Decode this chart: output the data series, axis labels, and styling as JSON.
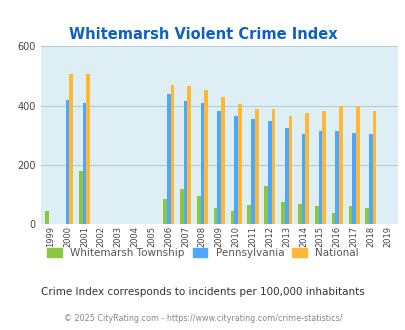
{
  "title": "Whitemarsh Violent Crime Index",
  "years": [
    1999,
    2000,
    2001,
    2002,
    2003,
    2004,
    2005,
    2006,
    2007,
    2008,
    2009,
    2010,
    2011,
    2012,
    2013,
    2014,
    2015,
    2016,
    2017,
    2018,
    2019
  ],
  "whitemarsh": [
    45,
    0,
    180,
    0,
    0,
    0,
    0,
    85,
    120,
    95,
    55,
    45,
    65,
    130,
    75,
    70,
    62,
    40,
    62,
    55,
    0
  ],
  "pennsylvania": [
    0,
    420,
    410,
    0,
    0,
    0,
    0,
    440,
    415,
    410,
    383,
    365,
    355,
    348,
    325,
    305,
    315,
    313,
    307,
    303,
    0
  ],
  "national": [
    0,
    505,
    505,
    0,
    0,
    0,
    0,
    470,
    465,
    452,
    430,
    405,
    390,
    390,
    365,
    375,
    383,
    400,
    397,
    383,
    0
  ],
  "whitemarsh_color": "#8dc63f",
  "pennsylvania_color": "#4da6ff",
  "national_color": "#ffb833",
  "plot_bg": "#ddeef5",
  "ylim": [
    0,
    600
  ],
  "yticks": [
    0,
    200,
    400,
    600
  ],
  "title_color": "#1060c0",
  "subtitle": "Crime Index corresponds to incidents per 100,000 inhabitants",
  "subtitle_color": "#333333",
  "footer": "© 2025 CityRating.com - https://www.cityrating.com/crime-statistics/",
  "footer_color": "#888888",
  "grid_color": "#b0c8d8",
  "bar_width": 0.22,
  "legend_whitemarsh": "Whitemarsh Township",
  "legend_pennsylvania": "Pennsylvania",
  "legend_national": "National"
}
